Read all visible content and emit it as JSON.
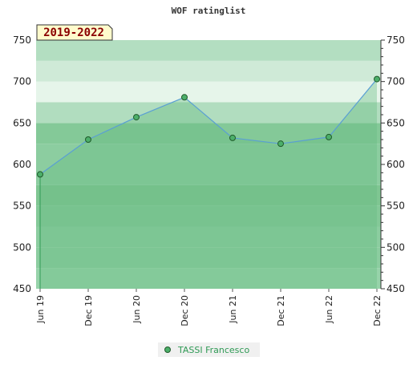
{
  "chart_data": {
    "type": "area",
    "title": "WOF ratinglist",
    "badge": "2019-2022",
    "categories": [
      "Jun 19",
      "Dec 19",
      "Jun 20",
      "Dec 20",
      "Jun 21",
      "Dec 21",
      "Jun 22",
      "Dec 22"
    ],
    "series": [
      {
        "name": "TASSI Francesco",
        "values": [
          588,
          630,
          657,
          681,
          632,
          625,
          633,
          703
        ]
      }
    ],
    "ylim": [
      450,
      750
    ],
    "yticks": [
      450,
      500,
      550,
      600,
      650,
      700,
      750
    ],
    "grid": true,
    "legend": "bottom-center",
    "colors": {
      "line": "#5a9fd4",
      "marker": "#4caf6a",
      "fill": "#8fcfa3",
      "band_dark": "#7fc692",
      "band_mid": "#a9dbb8",
      "band_light": "#e6f5ea",
      "legend_text": "#2f9a55",
      "badge_bg": "#fffbcc",
      "badge_text": "#8b0000"
    }
  }
}
